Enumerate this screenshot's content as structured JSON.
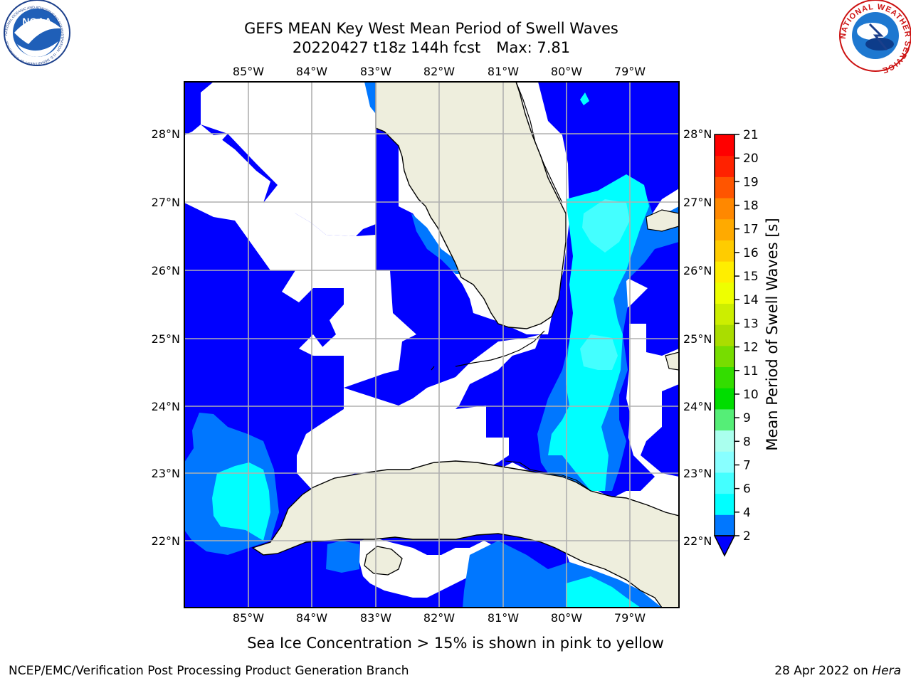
{
  "header": {
    "title_line1": "GEFS MEAN Key West Mean Period of Swell Waves",
    "title_line2": "20220427 t18z 144h fcst",
    "max_label": "Max: 7.81"
  },
  "logos": {
    "left": {
      "name": "noaa-logo",
      "text": "NOAA",
      "ring_text": "NATIONAL OCEANIC AND ATMOSPHERIC ADMINISTRATION · U.S. DEPARTMENT OF COMMERCE"
    },
    "right": {
      "name": "nws-logo",
      "ring_text": "NATIONAL WEATHER SERVICE"
    }
  },
  "map": {
    "lon_labels": [
      "85°W",
      "84°W",
      "83°W",
      "82°W",
      "81°W",
      "80°W",
      "79°W"
    ],
    "lat_labels": [
      "28°N",
      "27°N",
      "26°N",
      "25°N",
      "24°N",
      "23°N",
      "22°N"
    ],
    "land_color": "#eeeedd",
    "ocean_base_color": "#0000ff",
    "region": {
      "lon_min": -86.0,
      "lon_max": -78.25,
      "lat_min": 21.0,
      "lat_max": 28.75
    }
  },
  "colorbar": {
    "label": "Mean Period of Swell Waves [s]",
    "ticks": [
      "2",
      "4",
      "6",
      "7",
      "8",
      "9",
      "10",
      "11",
      "12",
      "13",
      "14",
      "15",
      "16",
      "17",
      "18",
      "19",
      "20",
      "21"
    ],
    "extend_color": "#0000ff",
    "colors": [
      "#0077ff",
      "#00ffff",
      "#44ffff",
      "#88ffff",
      "#aaffee",
      "#55ee77",
      "#00dd00",
      "#33dd00",
      "#77dd00",
      "#aadd00",
      "#ccee00",
      "#eeff00",
      "#ffee00",
      "#ffcc00",
      "#ffaa00",
      "#ff8800",
      "#ff5500",
      "#ff2200",
      "#ff0000"
    ]
  },
  "note": "Sea Ice Concentration > 15% is shown in pink to yellow",
  "footer": {
    "left": "NCEP/EMC/Verification Post Processing Product Generation Branch",
    "right_prefix": "28 Apr 2022 on ",
    "right_italic": "Hera"
  }
}
